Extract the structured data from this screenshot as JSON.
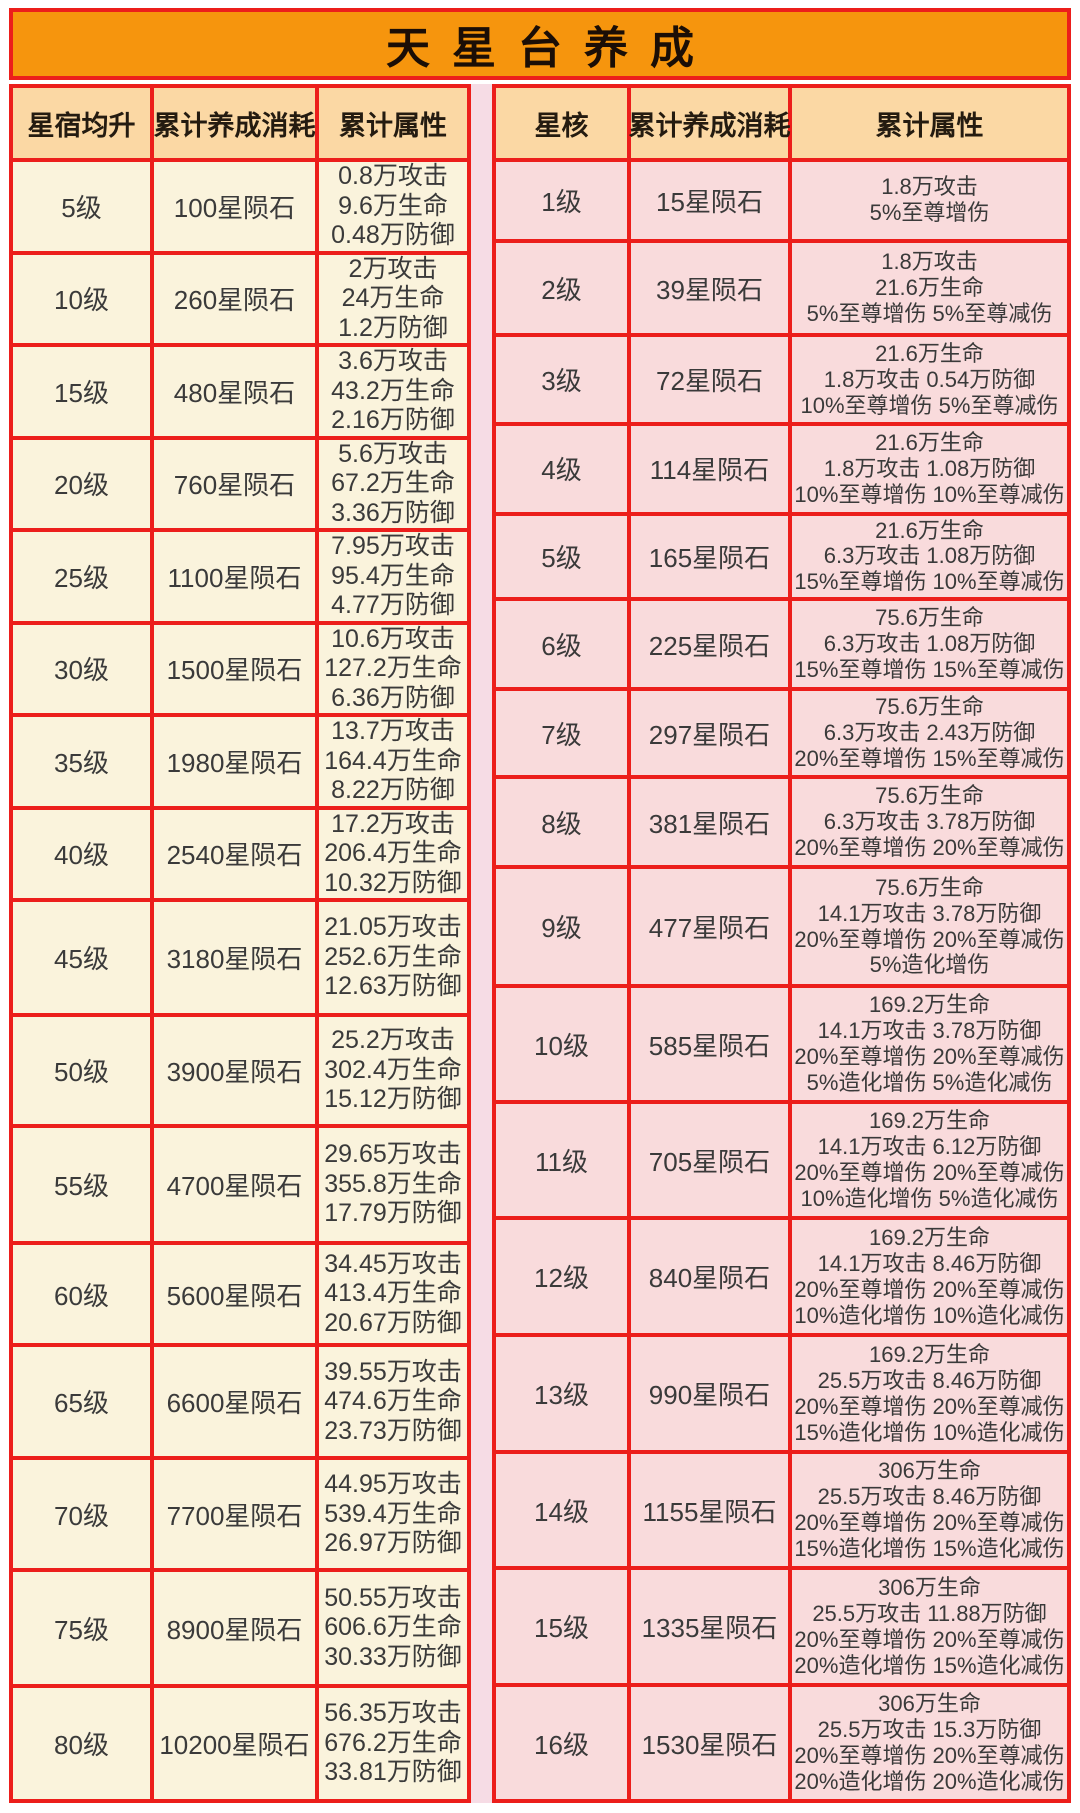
{
  "title": "天星台养成",
  "colors": {
    "border_red": "#EC1E1B",
    "title_orange": "#F6950D",
    "header_peach": "#FBD8A4",
    "left_cell_cream": "#FAF3DC",
    "right_cell_pink": "#F9DBDC",
    "divider_pink": "#F6DCE5"
  },
  "left_table": {
    "headers": [
      "星宿均升",
      "累计养成消耗",
      "累计属性"
    ],
    "rows": [
      {
        "level": "5级",
        "cost": "100星陨石",
        "attrs": [
          "0.8万攻击",
          "9.6万生命",
          "0.48万防御"
        ]
      },
      {
        "level": "10级",
        "cost": "260星陨石",
        "attrs": [
          "2万攻击",
          "24万生命",
          "1.2万防御"
        ]
      },
      {
        "level": "15级",
        "cost": "480星陨石",
        "attrs": [
          "3.6万攻击",
          "43.2万生命",
          "2.16万防御"
        ]
      },
      {
        "level": "20级",
        "cost": "760星陨石",
        "attrs": [
          "5.6万攻击",
          "67.2万生命",
          "3.36万防御"
        ]
      },
      {
        "level": "25级",
        "cost": "1100星陨石",
        "attrs": [
          "7.95万攻击",
          "95.4万生命",
          "4.77万防御"
        ]
      },
      {
        "level": "30级",
        "cost": "1500星陨石",
        "attrs": [
          "10.6万攻击",
          "127.2万生命",
          "6.36万防御"
        ]
      },
      {
        "level": "35级",
        "cost": "1980星陨石",
        "attrs": [
          "13.7万攻击",
          "164.4万生命",
          "8.22万防御"
        ]
      },
      {
        "level": "40级",
        "cost": "2540星陨石",
        "attrs": [
          "17.2万攻击",
          "206.4万生命",
          "10.32万防御"
        ]
      },
      {
        "level": "45级",
        "cost": "3180星陨石",
        "attrs": [
          "21.05万攻击",
          "252.6万生命",
          "12.63万防御"
        ]
      },
      {
        "level": "50级",
        "cost": "3900星陨石",
        "attrs": [
          "25.2万攻击",
          "302.4万生命",
          "15.12万防御"
        ]
      },
      {
        "level": "55级",
        "cost": "4700星陨石",
        "attrs": [
          "29.65万攻击",
          "355.8万生命",
          "17.79万防御"
        ]
      },
      {
        "level": "60级",
        "cost": "5600星陨石",
        "attrs": [
          "34.45万攻击",
          "413.4万生命",
          "20.67万防御"
        ]
      },
      {
        "level": "65级",
        "cost": "6600星陨石",
        "attrs": [
          "39.55万攻击",
          "474.6万生命",
          "23.73万防御"
        ]
      },
      {
        "level": "70级",
        "cost": "7700星陨石",
        "attrs": [
          "44.95万攻击",
          "539.4万生命",
          "26.97万防御"
        ]
      },
      {
        "level": "75级",
        "cost": "8900星陨石",
        "attrs": [
          "50.55万攻击",
          "606.6万生命",
          "30.33万防御"
        ]
      },
      {
        "level": "80级",
        "cost": "10200星陨石",
        "attrs": [
          "56.35万攻击",
          "676.2万生命",
          "33.81万防御"
        ]
      }
    ]
  },
  "right_table": {
    "headers": [
      "星核",
      "累计养成消耗",
      "累计属性"
    ],
    "rows": [
      {
        "level": "1级",
        "cost": "15星陨石",
        "attrs": [
          "1.8万攻击",
          "5%至尊增伤"
        ]
      },
      {
        "level": "2级",
        "cost": "39星陨石",
        "attrs": [
          "1.8万攻击",
          "21.6万生命",
          "5%至尊增伤 5%至尊减伤"
        ]
      },
      {
        "level": "3级",
        "cost": "72星陨石",
        "attrs": [
          "21.6万生命",
          "1.8万攻击 0.54万防御",
          "10%至尊增伤 5%至尊减伤"
        ]
      },
      {
        "level": "4级",
        "cost": "114星陨石",
        "attrs": [
          "21.6万生命",
          "1.8万攻击 1.08万防御",
          "10%至尊增伤 10%至尊减伤"
        ]
      },
      {
        "level": "5级",
        "cost": "165星陨石",
        "attrs": [
          "21.6万生命",
          "6.3万攻击 1.08万防御",
          "15%至尊增伤 10%至尊减伤"
        ]
      },
      {
        "level": "6级",
        "cost": "225星陨石",
        "attrs": [
          "75.6万生命",
          "6.3万攻击 1.08万防御",
          "15%至尊增伤 15%至尊减伤"
        ]
      },
      {
        "level": "7级",
        "cost": "297星陨石",
        "attrs": [
          "75.6万生命",
          "6.3万攻击 2.43万防御",
          "20%至尊增伤 15%至尊减伤"
        ]
      },
      {
        "level": "8级",
        "cost": "381星陨石",
        "attrs": [
          "75.6万生命",
          "6.3万攻击 3.78万防御",
          "20%至尊增伤 20%至尊减伤"
        ]
      },
      {
        "level": "9级",
        "cost": "477星陨石",
        "attrs": [
          "75.6万生命",
          "14.1万攻击 3.78万防御",
          "20%至尊增伤 20%至尊减伤",
          "5%造化增伤"
        ]
      },
      {
        "level": "10级",
        "cost": "585星陨石",
        "attrs": [
          "169.2万生命",
          "14.1万攻击 3.78万防御",
          "20%至尊增伤 20%至尊减伤",
          "5%造化增伤 5%造化减伤"
        ]
      },
      {
        "level": "11级",
        "cost": "705星陨石",
        "attrs": [
          "169.2万生命",
          "14.1万攻击 6.12万防御",
          "20%至尊增伤 20%至尊减伤",
          "10%造化增伤 5%造化减伤"
        ]
      },
      {
        "level": "12级",
        "cost": "840星陨石",
        "attrs": [
          "169.2万生命",
          "14.1万攻击 8.46万防御",
          "20%至尊增伤 20%至尊减伤",
          "10%造化增伤 10%造化减伤"
        ]
      },
      {
        "level": "13级",
        "cost": "990星陨石",
        "attrs": [
          "169.2万生命",
          "25.5万攻击 8.46万防御",
          "20%至尊增伤 20%至尊减伤",
          "15%造化增伤 10%造化减伤"
        ]
      },
      {
        "level": "14级",
        "cost": "1155星陨石",
        "attrs": [
          "306万生命",
          "25.5万攻击 8.46万防御",
          "20%至尊增伤 20%至尊减伤",
          "15%造化增伤 15%造化减伤"
        ]
      },
      {
        "level": "15级",
        "cost": "1335星陨石",
        "attrs": [
          "306万生命",
          "25.5万攻击 11.88万防御",
          "20%至尊增伤 20%至尊减伤",
          "20%造化增伤 15%造化减伤"
        ]
      },
      {
        "level": "16级",
        "cost": "1530星陨石",
        "attrs": [
          "306万生命",
          "25.5万攻击 15.3万防御",
          "20%至尊增伤 20%至尊减伤",
          "20%造化增伤 20%造化减伤"
        ]
      }
    ]
  }
}
